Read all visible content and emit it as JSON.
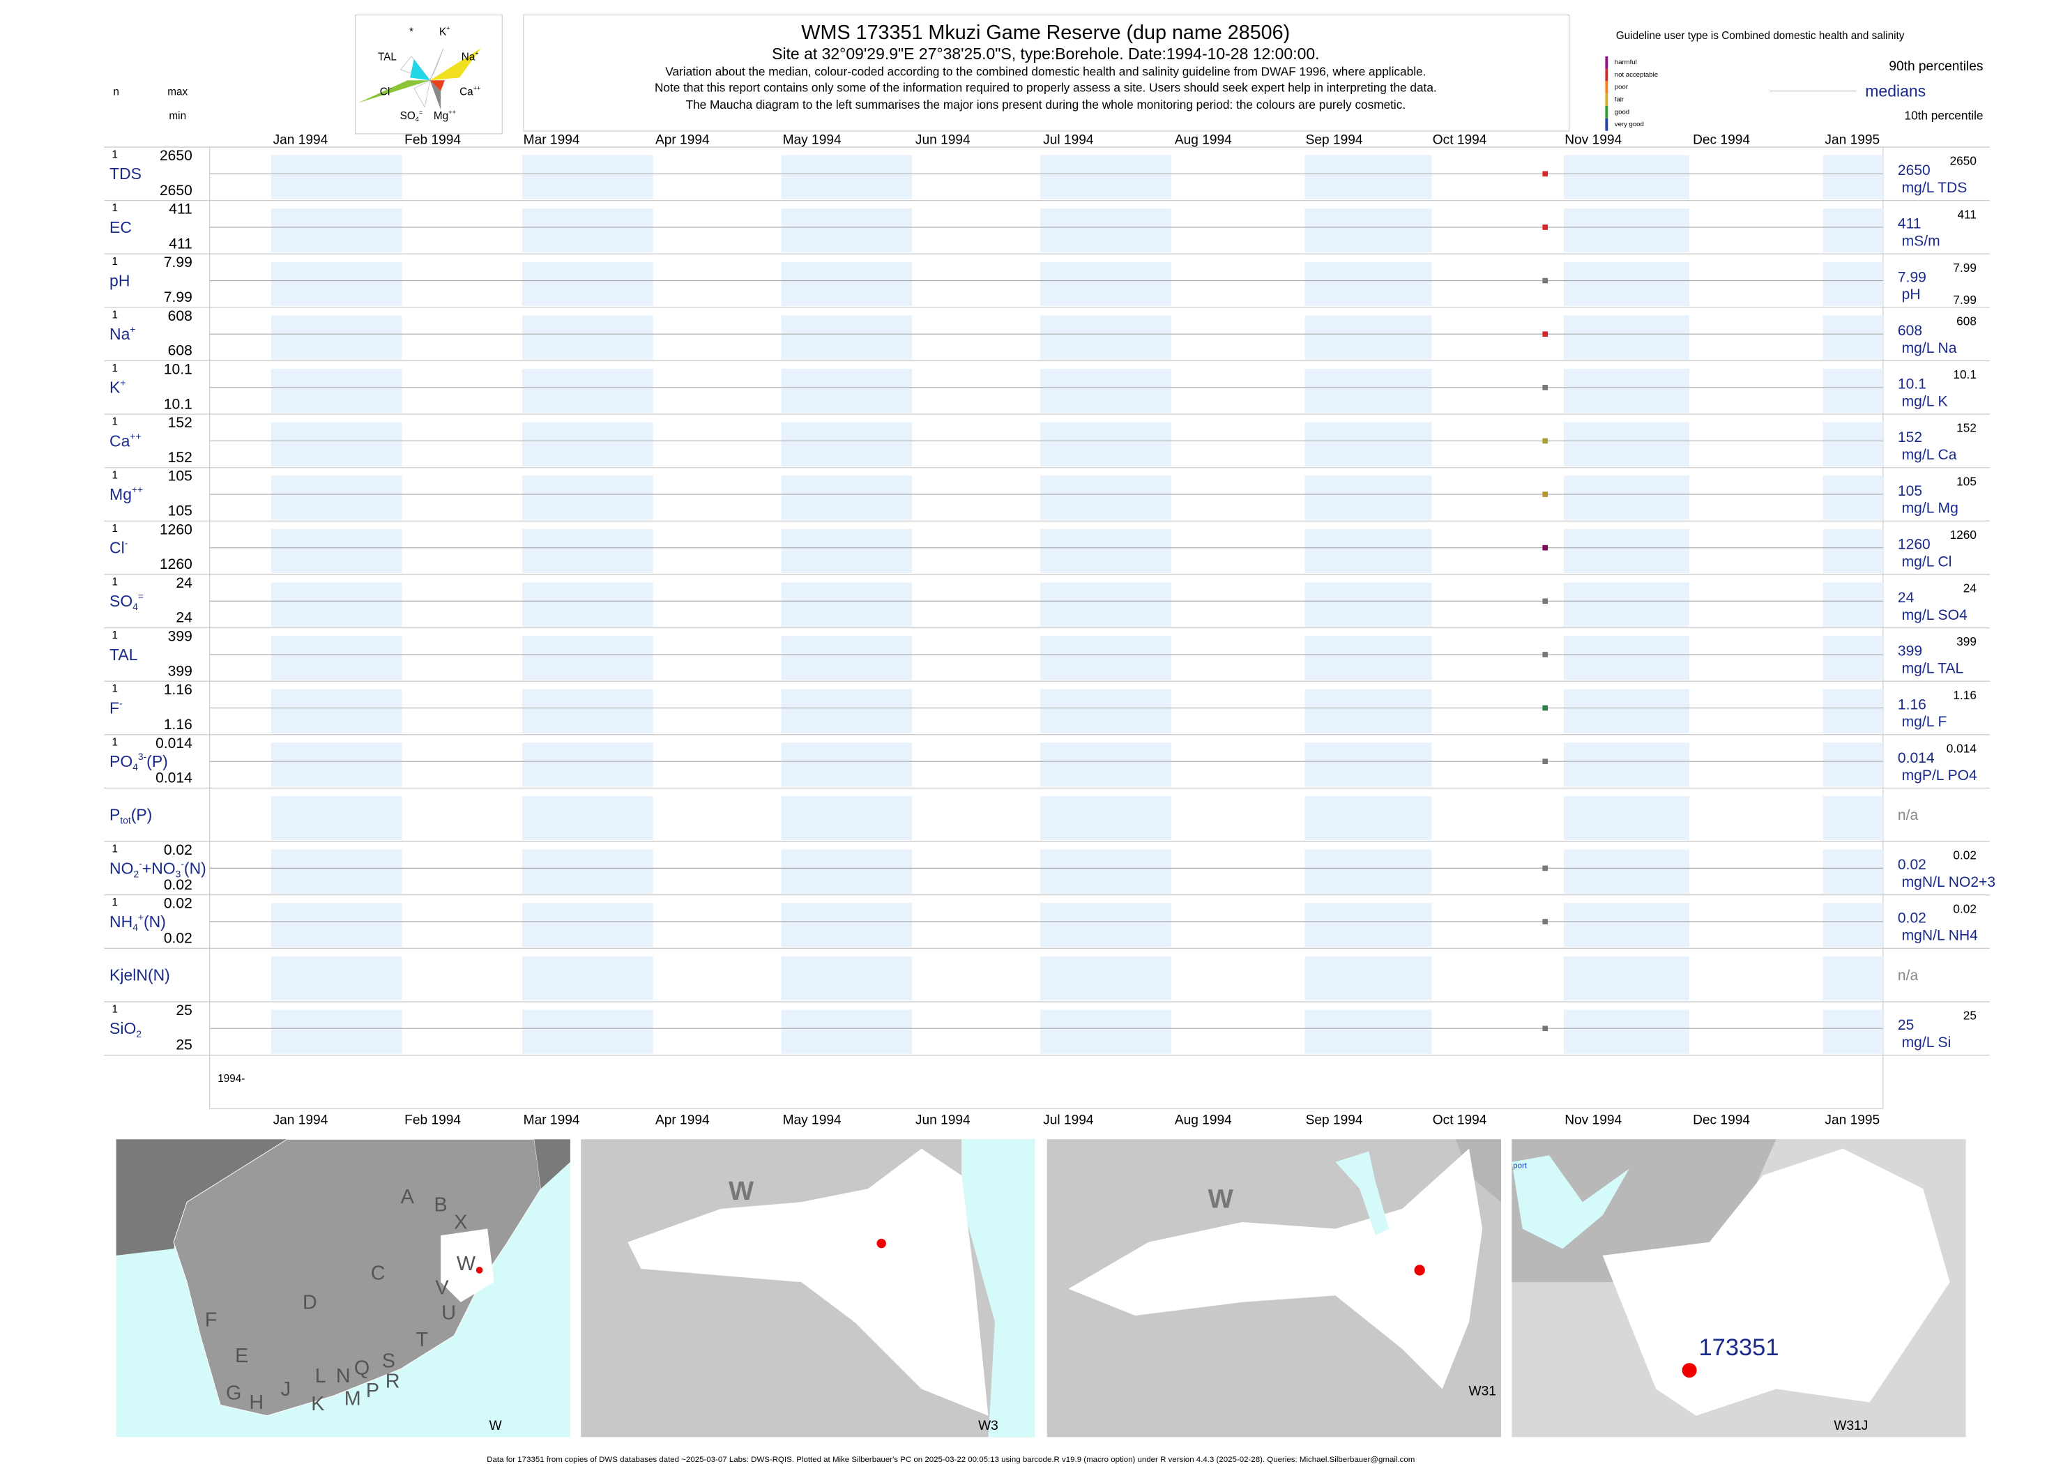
{
  "header": {
    "title": "WMS 173351  Mkuzi Game Reserve (dup name 28506)",
    "subtitle": "Site at 32°09'29.9\"E 27°38'25.0\"S, type:Borehole. Date:1994-10-28 12:00:00.",
    "notes": [
      "Variation about the median,  colour-coded according to the combined domestic health and salinity guideline from DWAF 1996, where applicable.",
      "Note that this report contains only some of the information required to properly assess a site. Users should seek expert help in interpreting the data.",
      "The Maucha diagram to the left summarises the major ions present during the whole monitoring period: the colours are purely cosmetic."
    ]
  },
  "left_header": {
    "n": "n",
    "max": "max",
    "min": "min"
  },
  "maucha": {
    "labels": [
      [
        {
          "t": "*"
        }
      ],
      [
        {
          "t": "K"
        },
        {
          "sup": "+"
        }
      ],
      [
        {
          "t": "TAL"
        }
      ],
      [
        {
          "t": "Na"
        },
        {
          "sup": "+"
        }
      ],
      [
        {
          "t": "Cl"
        },
        {
          "sup": "-"
        }
      ],
      [
        {
          "t": "Ca"
        },
        {
          "sup": "++"
        }
      ],
      [
        {
          "t": "SO"
        },
        {
          "sub": "4"
        },
        {
          "sup": "="
        }
      ],
      [
        {
          "t": "Mg"
        },
        {
          "sup": "++"
        }
      ]
    ]
  },
  "legend": {
    "guideline": "Guideline user type is Combined domestic health and salinity",
    "classes": [
      {
        "label": "harmful",
        "color": "#9b0a8a"
      },
      {
        "label": "not acceptable",
        "color": "#d62728"
      },
      {
        "label": "poor",
        "color": "#ff7f0e"
      },
      {
        "label": "fair",
        "color": "#d4b020"
      },
      {
        "label": "good",
        "color": "#2ca02c"
      },
      {
        "label": "very good",
        "color": "#1f3fb4"
      }
    ],
    "p90": "90th percentiles",
    "median": "medians",
    "p10": "10th percentile"
  },
  "months": [
    "Jan 1994",
    "Feb 1994",
    "Mar 1994",
    "Apr 1994",
    "May 1994",
    "Jun 1994",
    "Jul 1994",
    "Aug 1994",
    "Sep 1994",
    "Oct 1994",
    "Nov 1994",
    "Dec 1994",
    "Jan 1995"
  ],
  "rows": [
    {
      "name": [
        {
          "t": "TDS"
        }
      ],
      "n": 1,
      "max": 2650,
      "min": 2650,
      "median": 2650,
      "p90": 2650,
      "unit": "mg/L TDS",
      "color": "#d62728"
    },
    {
      "name": [
        {
          "t": "EC"
        }
      ],
      "n": 1,
      "max": 411,
      "min": 411,
      "median": 411,
      "p90": 411,
      "unit": "mS/m",
      "color": "#d62728"
    },
    {
      "name": [
        {
          "t": "pH"
        }
      ],
      "n": 1,
      "max": 7.99,
      "min": 7.99,
      "median": 7.99,
      "p90": 7.99,
      "p10": 7.99,
      "unit": "pH",
      "color": "#777777"
    },
    {
      "name": [
        {
          "t": "Na"
        },
        {
          "sup": "+"
        }
      ],
      "n": 1,
      "max": 608,
      "min": 608,
      "median": 608,
      "p90": 608,
      "unit": "mg/L Na",
      "color": "#d62728"
    },
    {
      "name": [
        {
          "t": "K"
        },
        {
          "sup": "+"
        }
      ],
      "n": 1,
      "max": 10.1,
      "min": 10.1,
      "median": 10.1,
      "p90": 10.1,
      "unit": "mg/L K",
      "color": "#777777"
    },
    {
      "name": [
        {
          "t": "Ca"
        },
        {
          "sup": "++"
        }
      ],
      "n": 1,
      "max": 152,
      "min": 152,
      "median": 152,
      "p90": 152,
      "unit": "mg/L Ca",
      "color": "#a8a030"
    },
    {
      "name": [
        {
          "t": "Mg"
        },
        {
          "sup": "++"
        }
      ],
      "n": 1,
      "max": 105,
      "min": 105,
      "median": 105,
      "p90": 105,
      "unit": "mg/L Mg",
      "color": "#b8962e"
    },
    {
      "name": [
        {
          "t": "Cl"
        },
        {
          "sup": "-"
        }
      ],
      "n": 1,
      "max": 1260,
      "min": 1260,
      "median": 1260,
      "p90": 1260,
      "unit": "mg/L Cl",
      "color": "#7a0a5a"
    },
    {
      "name": [
        {
          "t": "SO"
        },
        {
          "sub": "4"
        },
        {
          "sup": "="
        }
      ],
      "n": 1,
      "max": 24,
      "min": 24,
      "median": 24,
      "p90": 24,
      "unit": "mg/L SO4",
      "color": "#777777"
    },
    {
      "name": [
        {
          "t": "TAL"
        }
      ],
      "n": 1,
      "max": 399,
      "min": 399,
      "median": 399,
      "p90": 399,
      "unit": "mg/L TAL",
      "color": "#777777"
    },
    {
      "name": [
        {
          "t": "F"
        },
        {
          "sup": "-"
        }
      ],
      "n": 1,
      "max": 1.16,
      "min": 1.16,
      "median": 1.16,
      "p90": 1.16,
      "unit": "mg/L F",
      "color": "#2e7d4f"
    },
    {
      "name": [
        {
          "t": "PO"
        },
        {
          "sub": "4"
        },
        {
          "sup": "3-"
        },
        {
          "t": "(P)"
        }
      ],
      "n": 1,
      "max": 0.014,
      "min": 0.014,
      "median": 0.014,
      "p90": 0.014,
      "unit": "mgP/L PO4",
      "color": "#777777"
    },
    {
      "name": [
        {
          "t": "P"
        },
        {
          "sub": "tot"
        },
        {
          "t": "(P)"
        }
      ],
      "na": "n/a"
    },
    {
      "name": [
        {
          "t": "NO"
        },
        {
          "sub": "2"
        },
        {
          "sup": "-"
        },
        {
          "t": "+NO"
        },
        {
          "sub": "3"
        },
        {
          "sup": "-"
        },
        {
          "t": "(N)"
        }
      ],
      "n": 1,
      "max": 0.02,
      "min": 0.02,
      "median": 0.02,
      "p90": 0.02,
      "unit": "mgN/L NO2+3",
      "color": "#777777"
    },
    {
      "name": [
        {
          "t": "NH"
        },
        {
          "sub": "4"
        },
        {
          "sup": "+"
        },
        {
          "t": "(N)"
        }
      ],
      "n": 1,
      "max": 0.02,
      "min": 0.02,
      "median": 0.02,
      "p90": 0.02,
      "unit": "mgN/L NH4",
      "color": "#777777"
    },
    {
      "name": [
        {
          "t": "KjelN(N)"
        }
      ],
      "na": "n/a"
    },
    {
      "name": [
        {
          "t": "SiO"
        },
        {
          "sub": "2"
        }
      ],
      "n": 1,
      "max": 25,
      "min": 25,
      "median": 25,
      "p90": 25,
      "unit": "mg/L Si",
      "color": "#777777"
    }
  ],
  "year_label": "1994-",
  "maps": [
    {
      "labels": [
        "A",
        "B",
        "X",
        "W",
        "C",
        "V",
        "U",
        "D",
        "T",
        "F",
        "E",
        "S",
        "R",
        "L",
        "N",
        "Q",
        "J",
        "P",
        "M",
        "G",
        "H",
        "K"
      ],
      "corner": "W"
    },
    {
      "labels": [
        "W"
      ],
      "corner": "W3"
    },
    {
      "labels": [
        "W"
      ],
      "corner": "W31"
    },
    {
      "labels": [
        "port",
        "173351"
      ],
      "corner": "W31J"
    }
  ],
  "footer": "Data for 173351 from copies of DWS databases dated ~2025-03-07 Labs: DWS-RQIS. Plotted at Mike Silberbauer's PC on 2025-03-22 00:05:13 using barcode.R v19.9 (macro option) under R version 4.4.3 (2025-02-28). Queries: Michael.Silberbauer@gmail.com"
}
